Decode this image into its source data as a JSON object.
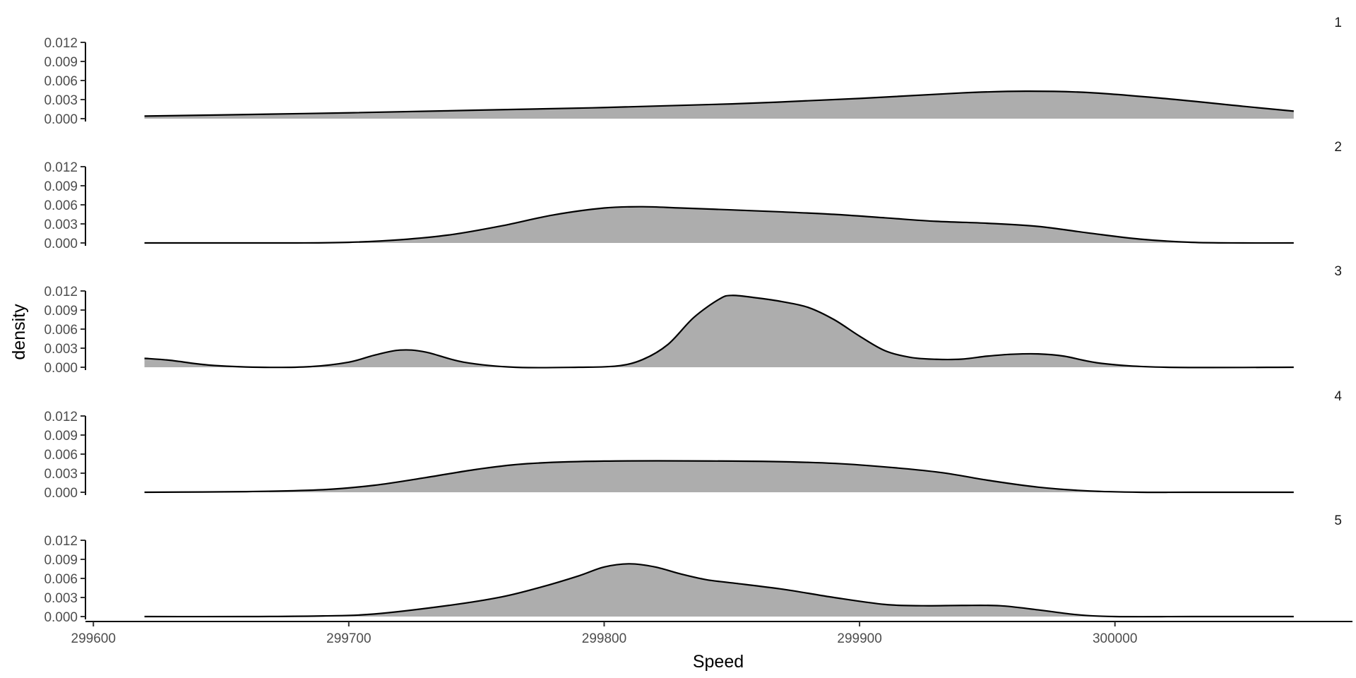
{
  "chart_data": {
    "type": "area",
    "subtype": "faceted-density",
    "xlabel": "Speed",
    "ylabel": "density",
    "xlim": [
      299598,
      300093
    ],
    "ylim": [
      0,
      0.012
    ],
    "x_ticks": [
      299600,
      299700,
      299800,
      299900,
      300000
    ],
    "x_tick_labels": [
      "299600",
      "299700",
      "299800",
      "299900",
      "300000"
    ],
    "y_ticks": [
      0,
      0.003,
      0.006,
      0.009,
      0.012
    ],
    "y_tick_labels": [
      "0.000",
      "0.003",
      "0.006",
      "0.009",
      "0.012"
    ],
    "grid": false,
    "fill_color": "#adadad",
    "line_color": "#000000",
    "facets": [
      {
        "label": "1",
        "x": [
          299620,
          299650,
          299700,
          299750,
          299800,
          299850,
          299900,
          299940,
          299965,
          299990,
          300020,
          300050,
          300070
        ],
        "density": [
          0.0004,
          0.00058,
          0.00092,
          0.00133,
          0.00175,
          0.00232,
          0.00318,
          0.00405,
          0.00432,
          0.0041,
          0.00315,
          0.00195,
          0.00118
        ]
      },
      {
        "label": "2",
        "x": [
          299620,
          299650,
          299680,
          299700,
          299720,
          299740,
          299760,
          299780,
          299800,
          299815,
          299830,
          299850,
          299870,
          299890,
          299910,
          299930,
          299950,
          299970,
          299990,
          300010,
          300030,
          300050,
          300070
        ],
        "density": [
          0.0,
          0.0,
          0.0,
          0.0001,
          0.0005,
          0.0013,
          0.0027,
          0.0044,
          0.0055,
          0.0057,
          0.0055,
          0.0052,
          0.00488,
          0.0045,
          0.00395,
          0.0034,
          0.0031,
          0.0026,
          0.00155,
          0.0006,
          0.0001,
          0.0,
          0.0
        ]
      },
      {
        "label": "3",
        "x": [
          299620,
          299630,
          299645,
          299665,
          299685,
          299700,
          299710,
          299720,
          299730,
          299745,
          299765,
          299790,
          299805,
          299815,
          299825,
          299835,
          299845,
          299850,
          299860,
          299870,
          299880,
          299890,
          299900,
          299910,
          299920,
          299930,
          299940,
          299950,
          299960,
          299970,
          299980,
          299995,
          300020,
          300070
        ],
        "density": [
          0.0014,
          0.0011,
          0.00035,
          0.0,
          0.0001,
          0.0008,
          0.0019,
          0.0027,
          0.0024,
          0.0008,
          0.0,
          0.0,
          0.0002,
          0.0012,
          0.0036,
          0.0078,
          0.0107,
          0.0113,
          0.0109,
          0.0103,
          0.0094,
          0.0075,
          0.0049,
          0.0026,
          0.00155,
          0.00125,
          0.00128,
          0.00175,
          0.00205,
          0.0021,
          0.00175,
          0.0006,
          0.0,
          0.0
        ]
      },
      {
        "label": "4",
        "x": [
          299620,
          299660,
          299690,
          299710,
          299730,
          299750,
          299770,
          299800,
          299850,
          299880,
          299900,
          299930,
          299950,
          299970,
          299990,
          300010,
          300030,
          300070
        ],
        "density": [
          0.0,
          0.0001,
          0.0004,
          0.0011,
          0.0023,
          0.0036,
          0.0045,
          0.0049,
          0.0049,
          0.0047,
          0.0043,
          0.0032,
          0.0019,
          0.0008,
          0.0002,
          0.0,
          0.0,
          0.0
        ]
      },
      {
        "label": "5",
        "x": [
          299620,
          299660,
          299690,
          299710,
          299740,
          299760,
          299775,
          299790,
          299800,
          299810,
          299820,
          299830,
          299840,
          299850,
          299870,
          299890,
          299910,
          299925,
          299940,
          299955,
          299970,
          299985,
          300000,
          300030,
          300070
        ],
        "density": [
          0.0,
          0.0,
          0.0001,
          0.0004,
          0.0018,
          0.0031,
          0.0046,
          0.0064,
          0.0078,
          0.0083,
          0.0078,
          0.0067,
          0.0058,
          0.0053,
          0.0043,
          0.003,
          0.0019,
          0.0017,
          0.00175,
          0.0017,
          0.00105,
          0.0003,
          0.0,
          0.0,
          0.0
        ]
      }
    ]
  }
}
